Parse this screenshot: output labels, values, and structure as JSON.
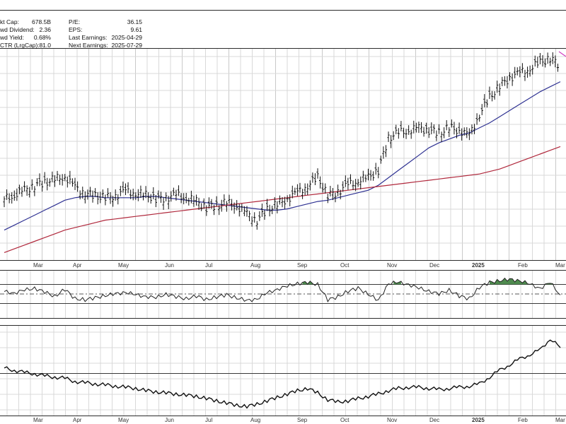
{
  "stats": {
    "left": [
      {
        "label": "kt Cap:",
        "value": "678.5B"
      },
      {
        "label": "wd Dividend:",
        "value": "2.36"
      },
      {
        "label": "wd Yield:",
        "value": "0.68%"
      },
      {
        "label": "CTR (LrgCap):",
        "value": "81.0"
      }
    ],
    "right": [
      {
        "label": "P/E:",
        "value": "36.15"
      },
      {
        "label": "EPS:",
        "value": "9.61"
      },
      {
        "label": "Last Earnings:",
        "value": "2025-04-29"
      },
      {
        "label": "Next Earnings:",
        "value": "2025-07-29"
      }
    ]
  },
  "colors": {
    "price": "#111111",
    "ma_short": "#2e3192",
    "ma_long": "#b0283c",
    "overbought_fill": "#4e8a4e",
    "magenta": "#d040c0"
  },
  "chart_data": [
    {
      "type": "ohlc",
      "panel": "price",
      "x": [
        "2024-02-12",
        "2024-02-19",
        "2024-02-26",
        "2024-03-04",
        "2024-03-11",
        "2024-03-18",
        "2024-03-25",
        "2024-04-01",
        "2024-04-08",
        "2024-04-15",
        "2024-04-22",
        "2024-04-29",
        "2024-05-06",
        "2024-05-13",
        "2024-05-20",
        "2024-05-27",
        "2024-06-03",
        "2024-06-10",
        "2024-06-17",
        "2024-06-24",
        "2024-07-01",
        "2024-07-08",
        "2024-07-15",
        "2024-07-22",
        "2024-07-29",
        "2024-08-05",
        "2024-08-12",
        "2024-08-19",
        "2024-08-26",
        "2024-09-02",
        "2024-09-09",
        "2024-09-16",
        "2024-09-23",
        "2024-09-30",
        "2024-10-07",
        "2024-10-14",
        "2024-10-21",
        "2024-10-28",
        "2024-11-04",
        "2024-11-11",
        "2024-11-18",
        "2024-11-25",
        "2024-12-02",
        "2024-12-09",
        "2024-12-16",
        "2024-12-23",
        "2024-12-30",
        "2025-01-06",
        "2025-01-13",
        "2025-01-20",
        "2025-01-27",
        "2025-02-03",
        "2025-02-10",
        "2025-02-17",
        "2025-02-24",
        "2025-03-03"
      ],
      "close": [
        265,
        268,
        272,
        276,
        278,
        281,
        283,
        274,
        270,
        267,
        266,
        268,
        271,
        270,
        268,
        265,
        266,
        268,
        266,
        263,
        258,
        260,
        262,
        259,
        253,
        248,
        256,
        261,
        265,
        270,
        276,
        282,
        268,
        271,
        276,
        280,
        282,
        288,
        314,
        318,
        320,
        322,
        320,
        318,
        322,
        320,
        316,
        333,
        346,
        356,
        362,
        366,
        370,
        374,
        378,
        372
      ],
      "series": [
        {
          "name": "",
          "values": [
            240,
            244,
            248,
            252,
            256,
            260,
            264,
            266,
            267,
            267,
            266,
            266,
            266,
            266,
            267,
            267,
            266,
            265,
            264,
            263,
            262,
            261,
            260,
            259,
            258,
            257,
            256,
            256,
            257,
            259,
            261,
            263,
            264,
            266,
            268,
            270,
            272,
            276,
            282,
            288,
            294,
            300,
            306,
            310,
            313,
            316,
            318,
            322,
            326,
            331,
            336,
            341,
            346,
            351,
            355,
            359
          ]
        },
        {
          "name": "",
          "values": [
            222,
            225,
            228,
            231,
            234,
            237,
            240,
            242,
            244,
            246,
            248,
            249,
            250,
            251,
            252,
            253,
            254,
            255,
            256,
            257,
            258,
            259,
            260,
            261,
            262,
            263,
            264,
            265,
            266,
            267,
            268,
            269,
            270,
            271,
            272,
            273,
            274,
            275,
            276,
            277,
            278,
            279,
            280,
            281,
            282,
            283,
            284,
            285,
            287,
            289,
            292,
            295,
            298,
            301,
            304,
            307
          ]
        }
      ],
      "xticks": [
        "Mar",
        "Apr",
        "May",
        "Jun",
        "Jul",
        "Aug",
        "Sep",
        "Oct",
        "Nov",
        "Dec",
        "2025",
        "Feb",
        "Mar"
      ]
    },
    {
      "type": "line",
      "panel": "oscillator",
      "values": [
        55,
        52,
        58,
        62,
        54,
        45,
        60,
        40,
        38,
        42,
        47,
        50,
        54,
        48,
        45,
        42,
        50,
        44,
        40,
        46,
        38,
        44,
        48,
        42,
        36,
        40,
        52,
        60,
        66,
        72,
        74,
        70,
        38,
        44,
        56,
        62,
        50,
        36,
        72,
        74,
        70,
        62,
        56,
        50,
        58,
        46,
        40,
        64,
        74,
        78,
        80,
        78,
        70,
        62,
        74,
        48
      ],
      "reference": [
        70,
        50,
        30
      ]
    },
    {
      "type": "line",
      "panel": "relative",
      "values": [
        62,
        60,
        58,
        57,
        55,
        54,
        53,
        50,
        49,
        48,
        47,
        46,
        45,
        44,
        42,
        41,
        40,
        39,
        38,
        37,
        35,
        33,
        31,
        29,
        28,
        30,
        33,
        36,
        39,
        42,
        44,
        40,
        34,
        32,
        33,
        35,
        37,
        39,
        42,
        44,
        45,
        45,
        44,
        43,
        44,
        45,
        46,
        48,
        54,
        60,
        65,
        70,
        74,
        78,
        88,
        80
      ],
      "xticks": [
        "Mar",
        "Apr",
        "May",
        "Jun",
        "Jul",
        "Aug",
        "Sep",
        "Oct",
        "Nov",
        "Dec",
        "2025",
        "Feb",
        "Mar"
      ]
    }
  ]
}
